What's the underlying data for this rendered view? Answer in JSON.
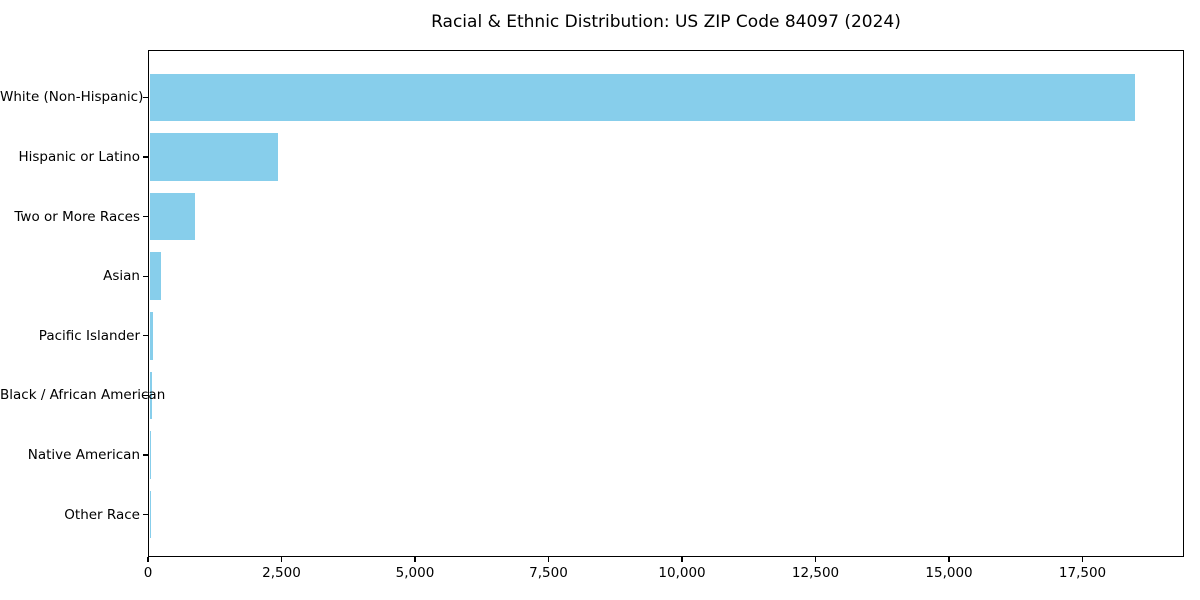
{
  "chart_data": {
    "type": "bar",
    "orientation": "horizontal",
    "title": "Racial & Ethnic Distribution: US ZIP Code 84097 (2024)",
    "categories": [
      "White (Non-Hispanic)",
      "Hispanic or Latino",
      "Two or More Races",
      "Asian",
      "Pacific Islander",
      "Black / African American",
      "Native American",
      "Other Race"
    ],
    "values": [
      18510,
      2420,
      850,
      225,
      60,
      40,
      35,
      10
    ],
    "xlabel": "",
    "ylabel": "",
    "xlim": [
      0,
      19400
    ],
    "xticks": {
      "values": [
        0,
        2500,
        5000,
        7500,
        10000,
        12500,
        15000,
        17500
      ],
      "labels": [
        "0",
        "2,500",
        "5,000",
        "7,500",
        "10,000",
        "12,500",
        "15,000",
        "17,500"
      ]
    },
    "grid": false,
    "legend": null,
    "bar_color": "#87CEEB",
    "frame_color": "#000000",
    "text_color": "#000000",
    "background_color": "#ffffff"
  }
}
